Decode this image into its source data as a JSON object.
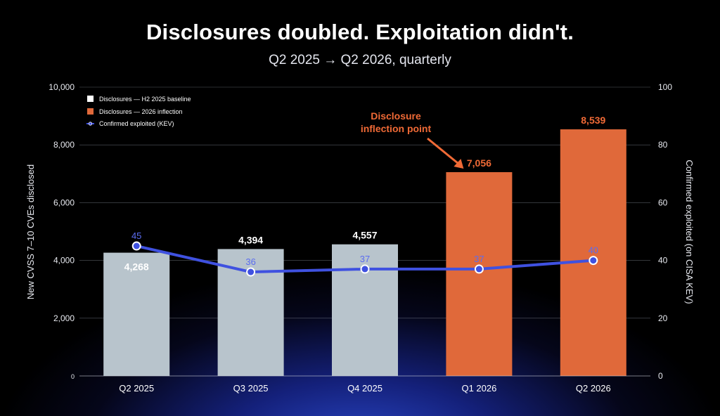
{
  "title": "Disclosures doubled. Exploitation didn't.",
  "subtitle": "Q2 2025 → Q2 2026, quarterly",
  "colors": {
    "baseline_bar": "#b8c4cc",
    "inflection_bar": "#e0693a",
    "line": "#3f51e0",
    "inflection_label": "#f06a36",
    "grid": "#9aa0ad"
  },
  "chart_data": {
    "type": "bar",
    "categories": [
      "Q2 2025",
      "Q3 2025",
      "Q4 2025",
      "Q1 2026",
      "Q2 2026"
    ],
    "series": [
      {
        "name": "Disclosures — H2 2025 baseline",
        "axis": "left",
        "values": [
          4268,
          4394,
          4557,
          null,
          null
        ],
        "labels": [
          "4,268",
          "4,394",
          "4,557",
          "",
          ""
        ]
      },
      {
        "name": "Disclosures — 2026 inflection",
        "axis": "left",
        "values": [
          null,
          null,
          null,
          7056,
          8539
        ],
        "labels": [
          "",
          "",
          "",
          "7,056",
          "8,539"
        ]
      },
      {
        "name": "Confirmed exploited (KEV)",
        "type": "line",
        "axis": "right",
        "values": [
          45,
          36,
          37,
          37,
          40
        ],
        "labels": [
          "45",
          "36",
          "37",
          "37",
          "40"
        ]
      }
    ],
    "ylabel": "New CVSS 7–10 CVEs disclosed",
    "y2label": "Confirmed exploited (on CISA KEV)",
    "ylim": [
      0,
      10000
    ],
    "y2lim": [
      0,
      100
    ],
    "yticks": [
      "0",
      "2,000",
      "4,000",
      "6,000",
      "8,000",
      "10,000"
    ],
    "y2ticks": [
      "0",
      "20",
      "40",
      "60",
      "80",
      "100"
    ],
    "grid": true,
    "legend_position": "top-left",
    "annotation": {
      "text_lines": [
        "Disclosure",
        "inflection point"
      ],
      "target_category": "Q1 2026"
    }
  }
}
